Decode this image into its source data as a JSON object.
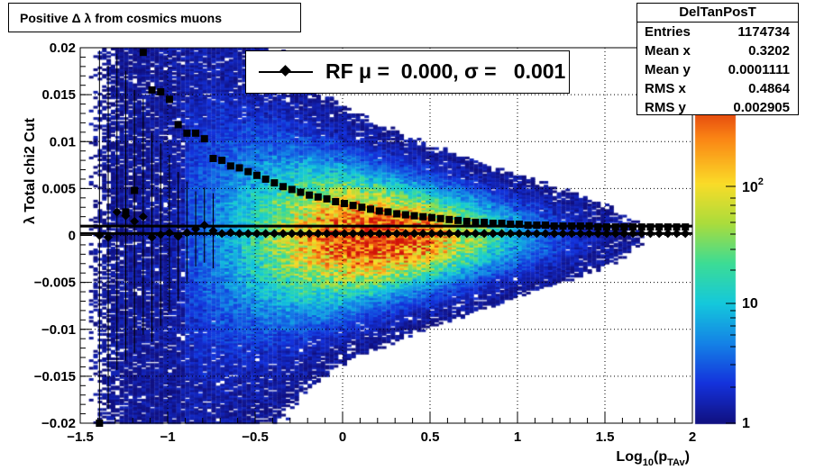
{
  "title": "Positive Δ λ from cosmics muons",
  "stats": {
    "name": "DelTanPosT",
    "rows": [
      {
        "label": "Entries",
        "value": "1174734"
      },
      {
        "label": "Mean x",
        "value": "0.3202"
      },
      {
        "label": "Mean y",
        "value": "0.0001111"
      },
      {
        "label": "RMS x",
        "value": "0.4864"
      },
      {
        "label": "RMS y",
        "value": "0.002905"
      }
    ]
  },
  "legend": {
    "text": "RF μ =  0.000, σ =   0.001"
  },
  "colors": {
    "frame": "#000000",
    "grid": "#000000",
    "marker": "#000000"
  },
  "chart_data": {
    "type": "heatmap",
    "title": "Positive Δ λ from cosmics muons",
    "xlabel": "Log10(pTAv)",
    "ylabel": "λ  Total chi2 Cut",
    "xlim": [
      -1.5,
      2
    ],
    "ylim": [
      -0.02,
      0.02
    ],
    "x_ticks": [
      "−1.5",
      "−1",
      "−0.5",
      "0",
      "0.5",
      "1",
      "1.5",
      "2"
    ],
    "y_ticks": [
      "−0.02",
      "−0.015",
      "−0.01",
      "−0.005",
      "0",
      "0.005",
      "0.01",
      "0.015",
      "0.02"
    ],
    "z_scale": "log",
    "z_ticks": [
      "1",
      "10",
      "10^2"
    ],
    "grid": true,
    "reference_lines": [
      0.001,
      0.0002
    ],
    "mean_series": {
      "marker": "diamond",
      "x": [
        -1.39,
        -1.34,
        -1.29,
        -1.24,
        -1.19,
        -1.14,
        -1.09,
        -1.04,
        -0.99,
        -0.94,
        -0.89,
        -0.84,
        -0.79,
        -0.74,
        -0.69,
        -0.64,
        -0.59,
        -0.54,
        -0.49,
        -0.44,
        -0.39,
        -0.34,
        -0.29,
        -0.24,
        -0.19,
        -0.14,
        -0.09,
        -0.04,
        0.01,
        0.06,
        0.11,
        0.16,
        0.21,
        0.26,
        0.31,
        0.36,
        0.41,
        0.46,
        0.51,
        0.56,
        0.61,
        0.66,
        0.71,
        0.76,
        0.81,
        0.86,
        0.91,
        0.96,
        1.01,
        1.06,
        1.11,
        1.16,
        1.21,
        1.26,
        1.31,
        1.36,
        1.41,
        1.46,
        1.51,
        1.56,
        1.61,
        1.66,
        1.71,
        1.76,
        1.81,
        1.86,
        1.91,
        1.96
      ],
      "y": [
        0.0,
        -0.0002,
        0.0025,
        0.0021,
        0.0015,
        0.002,
        -0.0002,
        0.0001,
        0.0003,
        -0.0001,
        0.0003,
        0.0007,
        0.0011,
        0.0005,
        0.0002,
        0.0003,
        0.0002,
        0.0002,
        0.0002,
        0.0002,
        0.0002,
        0.0002,
        0.0002,
        0.0002,
        0.0002,
        0.0002,
        0.0002,
        0.0002,
        0.0002,
        0.0002,
        0.0002,
        0.0002,
        0.0002,
        0.0002,
        0.0002,
        0.0002,
        0.0002,
        0.0002,
        0.0002,
        0.0002,
        0.0002,
        0.0002,
        0.0002,
        0.0002,
        0.0002,
        0.0002,
        0.0002,
        0.0002,
        0.0002,
        0.0002,
        0.0002,
        0.0002,
        0.0002,
        0.0002,
        0.0002,
        0.0002,
        0.0002,
        0.0002,
        0.0002,
        0.0002,
        0.0002,
        0.0002,
        0.0002,
        0.0002,
        0.0002,
        0.0002,
        0.0002,
        0.0002
      ]
    },
    "rms_series": {
      "marker": "square",
      "x": [
        -1.39,
        -1.24,
        -1.19,
        -1.14,
        -1.09,
        -1.04,
        -0.99,
        -0.94,
        -0.89,
        -0.84,
        -0.79,
        -0.74,
        -0.69,
        -0.64,
        -0.59,
        -0.54,
        -0.49,
        -0.44,
        -0.39,
        -0.34,
        -0.29,
        -0.24,
        -0.19,
        -0.14,
        -0.09,
        -0.04,
        0.01,
        0.06,
        0.11,
        0.16,
        0.21,
        0.26,
        0.31,
        0.36,
        0.41,
        0.46,
        0.51,
        0.56,
        0.61,
        0.66,
        0.71,
        0.76,
        0.81,
        0.86,
        0.91,
        0.96,
        1.01,
        1.06,
        1.11,
        1.16,
        1.21,
        1.26,
        1.31,
        1.36,
        1.41,
        1.46,
        1.51,
        1.56,
        1.61,
        1.66,
        1.71,
        1.76,
        1.81,
        1.86,
        1.91,
        1.96
      ],
      "y": [
        -0.02,
        0.0025,
        0.0048,
        0.0195,
        0.0155,
        0.0153,
        0.0145,
        0.0118,
        0.0109,
        0.0109,
        0.0103,
        0.0082,
        0.008,
        0.0074,
        0.0072,
        0.0068,
        0.0064,
        0.006,
        0.0056,
        0.0052,
        0.0049,
        0.0046,
        0.0043,
        0.0041,
        0.0039,
        0.0036,
        0.0034,
        0.0032,
        0.003,
        0.0028,
        0.0026,
        0.0025,
        0.0023,
        0.0022,
        0.0021,
        0.002,
        0.0019,
        0.0018,
        0.0017,
        0.0016,
        0.0015,
        0.0014,
        0.0014,
        0.0013,
        0.0013,
        0.0012,
        0.0012,
        0.0011,
        0.0011,
        0.0011,
        0.001,
        0.001,
        0.001,
        0.001,
        0.001,
        0.0009,
        0.0009,
        0.0009,
        0.0009,
        0.0009,
        0.0009,
        0.0009,
        0.0009,
        0.0009,
        0.0009,
        0.0009
      ]
    }
  }
}
